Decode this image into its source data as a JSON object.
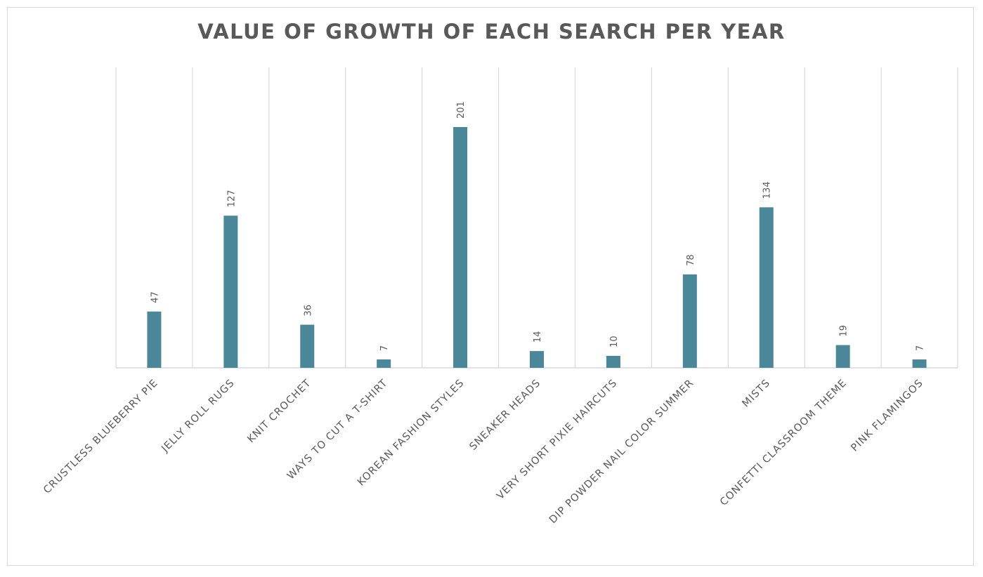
{
  "chart_data": {
    "type": "bar",
    "title": "VALUE OF GROWTH OF EACH SEARCH PER YEAR",
    "xlabel": "",
    "ylabel": "",
    "categories": [
      "CRUSTLESS BLUEBERRY PIE",
      "JELLY ROLL RUGS",
      "KNIT CROCHET",
      "WAYS TO CUT A T-SHIRT",
      "KOREAN FASHION STYLES",
      "SNEAKER HEADS",
      "VERY SHORT PIXIE HAIRCUTS",
      "DIP POWDER NAIL COLOR SUMMER",
      "MISTS",
      "CONFETTI CLASSROOM THEME",
      "PINK FLAMINGOS"
    ],
    "values": [
      47,
      127,
      36,
      7,
      201,
      14,
      10,
      78,
      134,
      19,
      7
    ],
    "ylim": [
      0,
      250
    ],
    "grid": "vertical",
    "legend": "none",
    "bar_color": "#4a8799",
    "gridline_color": "#d9d9d9",
    "text_color": "#595959"
  }
}
